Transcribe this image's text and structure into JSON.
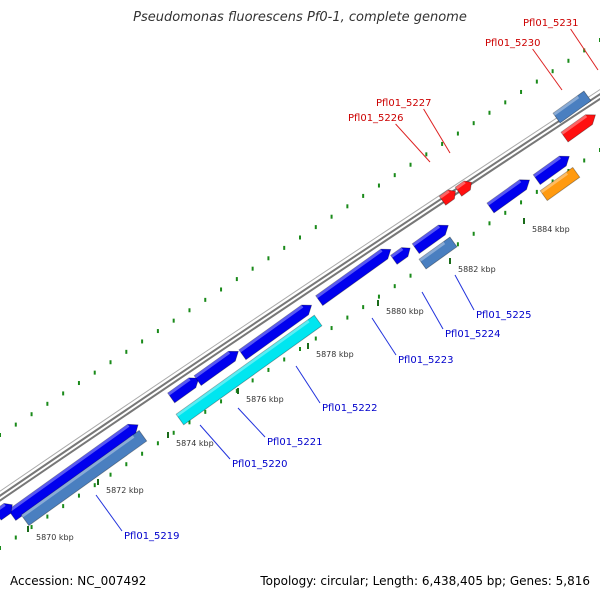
{
  "title": "Pseudomonas fluorescens Pf0-1, complete genome",
  "footer": {
    "accession": "Accession: NC_007492",
    "stats": "Topology: circular; Length: 6,438,405 bp; Genes: 5,816"
  },
  "colors": {
    "backbone": "#999999",
    "forward_gene": "#0000ee",
    "reverse_gene": "#4a7fc0",
    "cyan_gene": "#00e6f0",
    "red_gene": "#ff1010",
    "orange_gene": "#ff9a10",
    "tick_major": "#1a6b1a",
    "tick_minor": "#1a8a1a",
    "blue_label": "#0000cc",
    "red_label": "#cc0000"
  },
  "ticks": [
    {
      "label": "5870 kbp"
    },
    {
      "label": "5872 kbp"
    },
    {
      "label": "5874 kbp"
    },
    {
      "label": "5876 kbp"
    },
    {
      "label": "5878 kbp"
    },
    {
      "label": "5880 kbp"
    },
    {
      "label": "5882 kbp"
    },
    {
      "label": "5884 kbp"
    }
  ],
  "gene_labels": [
    {
      "text": "Pfl01_5219",
      "color": "blue"
    },
    {
      "text": "Pfl01_5220",
      "color": "blue"
    },
    {
      "text": "Pfl01_5221",
      "color": "blue"
    },
    {
      "text": "Pfl01_5222",
      "color": "blue"
    },
    {
      "text": "Pfl01_5223",
      "color": "blue"
    },
    {
      "text": "Pfl01_5224",
      "color": "blue"
    },
    {
      "text": "Pfl01_5225",
      "color": "blue"
    },
    {
      "text": "Pfl01_5226",
      "color": "red"
    },
    {
      "text": "Pfl01_5227",
      "color": "red"
    },
    {
      "text": "Pfl01_5230",
      "color": "red"
    },
    {
      "text": "Pfl01_5231",
      "color": "red"
    }
  ]
}
